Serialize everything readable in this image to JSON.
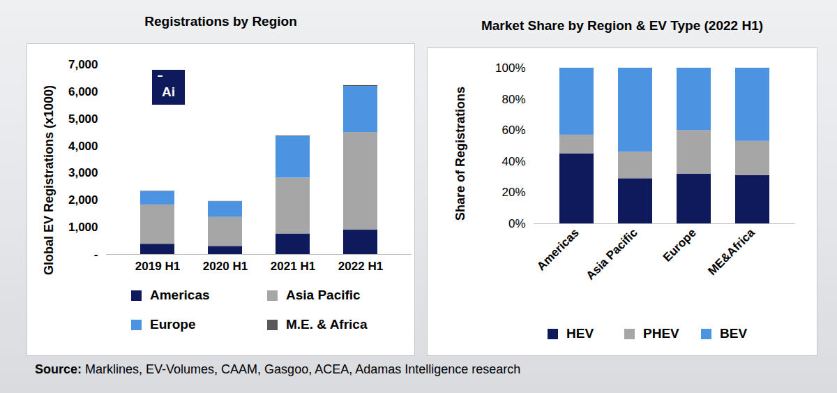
{
  "chart_data": [
    {
      "type": "bar",
      "stacked": true,
      "title": "Registrations by Region",
      "ylabel": "Global EV Registrations (x1000)",
      "categories": [
        "2019 H1",
        "2020 H1",
        "2021 H1",
        "2022 H1"
      ],
      "series": [
        {
          "name": "Americas",
          "color": "#0e1a5c",
          "values": [
            380,
            300,
            760,
            900
          ]
        },
        {
          "name": "Asia Pacific",
          "color": "#a6a6a6",
          "values": [
            1450,
            1070,
            2060,
            3600
          ]
        },
        {
          "name": "Europe",
          "color": "#4c93e2",
          "values": [
            500,
            580,
            1530,
            1700
          ]
        },
        {
          "name": "M.E. & Africa",
          "color": "#595959",
          "values": [
            10,
            10,
            20,
            30
          ]
        }
      ],
      "ylim": [
        0,
        7000
      ],
      "yticks": [
        {
          "value": 0,
          "label": "-"
        },
        {
          "value": 1000,
          "label": "1,000"
        },
        {
          "value": 2000,
          "label": "2,000"
        },
        {
          "value": 3000,
          "label": "3,000"
        },
        {
          "value": 4000,
          "label": "4,000"
        },
        {
          "value": 5000,
          "label": "5,000"
        },
        {
          "value": 6000,
          "label": "6,000"
        },
        {
          "value": 7000,
          "label": "7,000"
        }
      ],
      "grid": false,
      "legend": "bottom"
    },
    {
      "type": "bar",
      "stacked": true,
      "title": "Market Share by Region & EV Type (2022 H1)",
      "ylabel": "Share of Registrations",
      "categories": [
        "Americas",
        "Asia Pacific",
        "Europe",
        "ME&Africa"
      ],
      "series": [
        {
          "name": "HEV",
          "color": "#0e1a5c",
          "values": [
            45,
            29,
            32,
            31
          ]
        },
        {
          "name": "PHEV",
          "color": "#a6a6a6",
          "values": [
            12,
            17,
            28,
            22
          ]
        },
        {
          "name": "BEV",
          "color": "#4c93e2",
          "values": [
            43,
            54,
            40,
            47
          ]
        }
      ],
      "ylim": [
        0,
        100
      ],
      "yticks": [
        {
          "value": 0,
          "label": "0%"
        },
        {
          "value": 20,
          "label": "20%"
        },
        {
          "value": 40,
          "label": "40%"
        },
        {
          "value": 60,
          "label": "60%"
        },
        {
          "value": 80,
          "label": "80%"
        },
        {
          "value": 100,
          "label": "100%"
        }
      ],
      "grid": false,
      "legend": "bottom"
    }
  ],
  "logo": "Ai",
  "source": {
    "label": "Source:",
    "text": "Marklines, EV-Volumes, CAAM, Gasgoo, ACEA, Adamas Intelligence research"
  }
}
